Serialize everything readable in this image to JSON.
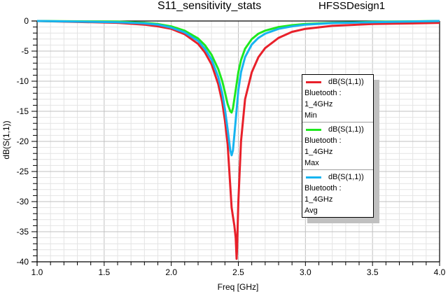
{
  "header": {
    "title": "S11_sensitivity_stats",
    "design": "HFSSDesign1"
  },
  "chart_data": {
    "type": "line",
    "title": "S11_sensitivity_stats",
    "subtitle": "HFSSDesign1",
    "xlabel": "Freq [GHz]",
    "ylabel": "dB(S(1,1))",
    "xlim": [
      1.0,
      4.0
    ],
    "ylim": [
      -40,
      0
    ],
    "x_ticks": [
      "1.0",
      "1.5",
      "2.0",
      "2.5",
      "3.0",
      "3.5",
      "4.0"
    ],
    "y_ticks": [
      "0",
      "-5",
      "-10",
      "-15",
      "-20",
      "-25",
      "-30",
      "-35",
      "-40"
    ],
    "grid": true,
    "legend_position": "right-inside",
    "series": [
      {
        "name": "dB(S(1,1)) Bluetooth : 1_4GHz Min",
        "color": "#e8202a",
        "x": [
          1.0,
          1.6,
          1.8,
          1.9,
          2.0,
          2.1,
          2.2,
          2.25,
          2.3,
          2.35,
          2.38,
          2.4,
          2.42,
          2.43,
          2.44,
          2.45,
          2.46,
          2.47,
          2.48,
          2.487,
          2.49,
          2.5,
          2.52,
          2.55,
          2.6,
          2.65,
          2.7,
          2.8,
          2.9,
          3.0,
          3.2,
          3.5,
          3.8,
          4.0
        ],
        "y": [
          0,
          -0.3,
          -0.6,
          -0.9,
          -1.3,
          -2.2,
          -3.8,
          -5.2,
          -7.2,
          -10.5,
          -13.5,
          -16.5,
          -20.5,
          -24,
          -27.5,
          -31,
          -32.5,
          -34,
          -36,
          -39.5,
          -38,
          -30,
          -20,
          -13,
          -8.5,
          -6,
          -4.5,
          -2.8,
          -1.8,
          -1.3,
          -0.8,
          -0.5,
          -0.4,
          -0.3
        ]
      },
      {
        "name": "dB(S(1,1)) Bluetooth : 1_4GHz Max",
        "color": "#1ee81e",
        "x": [
          1.0,
          1.6,
          1.8,
          1.9,
          2.0,
          2.1,
          2.2,
          2.25,
          2.3,
          2.35,
          2.38,
          2.4,
          2.42,
          2.44,
          2.45,
          2.46,
          2.48,
          2.5,
          2.52,
          2.55,
          2.6,
          2.65,
          2.7,
          2.8,
          2.9,
          3.0,
          3.2,
          3.5,
          4.0
        ],
        "y": [
          0,
          -0.1,
          -0.3,
          -0.5,
          -0.9,
          -1.6,
          -2.9,
          -4,
          -5.6,
          -8,
          -10,
          -11.8,
          -13.8,
          -15,
          -15.2,
          -14.5,
          -11.5,
          -8.5,
          -6.5,
          -4.6,
          -3,
          -2.1,
          -1.6,
          -1,
          -0.7,
          -0.5,
          -0.3,
          -0.15,
          0
        ]
      },
      {
        "name": "dB(S(1,1)) Bluetooth : 1_4GHz Avg",
        "color": "#16b4f0",
        "x": [
          1.0,
          1.6,
          1.8,
          1.9,
          2.0,
          2.1,
          2.2,
          2.25,
          2.3,
          2.35,
          2.38,
          2.4,
          2.42,
          2.44,
          2.45,
          2.46,
          2.48,
          2.5,
          2.52,
          2.55,
          2.6,
          2.65,
          2.7,
          2.8,
          2.9,
          3.0,
          3.2,
          3.5,
          4.0
        ],
        "y": [
          0,
          -0.2,
          -0.4,
          -0.6,
          -1.1,
          -1.9,
          -3.3,
          -4.6,
          -6.4,
          -9.3,
          -12,
          -14.6,
          -18,
          -21.5,
          -22.3,
          -21.5,
          -16.5,
          -11.5,
          -8.5,
          -6,
          -3.9,
          -2.8,
          -2.1,
          -1.3,
          -0.9,
          -0.6,
          -0.35,
          -0.2,
          0
        ]
      }
    ]
  },
  "legend": {
    "entries": [
      {
        "label": "dB(S(1,1))",
        "sweep": "Bluetooth : 1_4GHz",
        "stat": "Min",
        "color": "#e8202a"
      },
      {
        "label": "dB(S(1,1))",
        "sweep": "Bluetooth : 1_4GHz",
        "stat": "Max",
        "color": "#1ee81e"
      },
      {
        "label": "dB(S(1,1))",
        "sweep": "Bluetooth : 1_4GHz",
        "stat": "Avg",
        "color": "#16b4f0"
      }
    ]
  }
}
